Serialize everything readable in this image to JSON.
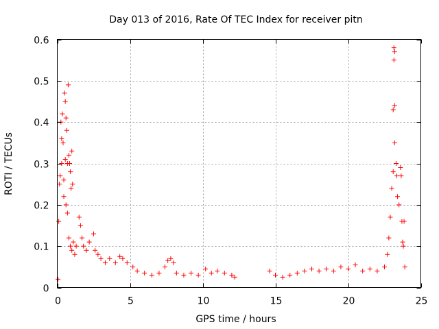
{
  "chart_data": {
    "type": "scatter",
    "title": "Day 013 of 2016, Rate Of TEC Index for receiver pitn",
    "xlabel": "GPS time / hours",
    "ylabel": "ROTI / TECUs",
    "xlim": [
      0,
      25
    ],
    "ylim": [
      0,
      0.6
    ],
    "xticks": [
      0,
      5,
      10,
      15,
      20,
      25
    ],
    "yticks": [
      0,
      0.1,
      0.2,
      0.3,
      0.4,
      0.5,
      0.6
    ],
    "xtick_labels": [
      "0",
      "5",
      "10",
      "15",
      "20",
      "25"
    ],
    "ytick_labels": [
      "0",
      "0.1",
      "0.2",
      "0.3",
      "0.4",
      "0.5",
      "0.6"
    ],
    "grid": true,
    "marker": "+",
    "color": "#ff0000",
    "series": [
      {
        "name": "ROTI",
        "points": [
          [
            0.05,
            0.02
          ],
          [
            0.1,
            0.16
          ],
          [
            0.15,
            0.25
          ],
          [
            0.2,
            0.27
          ],
          [
            0.25,
            0.4
          ],
          [
            0.3,
            0.36
          ],
          [
            0.35,
            0.42
          ],
          [
            0.4,
            0.35
          ],
          [
            0.45,
            0.22
          ],
          [
            0.5,
            0.47
          ],
          [
            0.55,
            0.45
          ],
          [
            0.6,
            0.41
          ],
          [
            0.65,
            0.38
          ],
          [
            0.7,
            0.3
          ],
          [
            0.75,
            0.49
          ],
          [
            0.8,
            0.32
          ],
          [
            0.85,
            0.3
          ],
          [
            0.9,
            0.28
          ],
          [
            0.95,
            0.24
          ],
          [
            1.0,
            0.33
          ],
          [
            1.05,
            0.25
          ],
          [
            0.3,
            0.3
          ],
          [
            0.45,
            0.26
          ],
          [
            0.55,
            0.31
          ],
          [
            0.6,
            0.2
          ],
          [
            0.7,
            0.18
          ],
          [
            0.8,
            0.12
          ],
          [
            0.9,
            0.1
          ],
          [
            1.0,
            0.09
          ],
          [
            1.1,
            0.11
          ],
          [
            1.2,
            0.08
          ],
          [
            1.3,
            0.1
          ],
          [
            1.5,
            0.17
          ],
          [
            1.6,
            0.15
          ],
          [
            1.7,
            0.12
          ],
          [
            1.8,
            0.1
          ],
          [
            2.0,
            0.09
          ],
          [
            2.2,
            0.11
          ],
          [
            2.5,
            0.13
          ],
          [
            2.6,
            0.09
          ],
          [
            2.8,
            0.08
          ],
          [
            3.0,
            0.07
          ],
          [
            3.3,
            0.06
          ],
          [
            3.6,
            0.07
          ],
          [
            4.0,
            0.06
          ],
          [
            4.3,
            0.075
          ],
          [
            4.5,
            0.07
          ],
          [
            4.8,
            0.06
          ],
          [
            5.2,
            0.05
          ],
          [
            5.5,
            0.04
          ],
          [
            6.0,
            0.035
          ],
          [
            6.5,
            0.03
          ],
          [
            7.0,
            0.035
          ],
          [
            7.4,
            0.05
          ],
          [
            7.6,
            0.065
          ],
          [
            7.8,
            0.07
          ],
          [
            8.0,
            0.06
          ],
          [
            8.2,
            0.035
          ],
          [
            8.7,
            0.03
          ],
          [
            9.2,
            0.035
          ],
          [
            9.7,
            0.03
          ],
          [
            10.2,
            0.045
          ],
          [
            10.6,
            0.035
          ],
          [
            11.0,
            0.04
          ],
          [
            11.5,
            0.035
          ],
          [
            12.0,
            0.03
          ],
          [
            12.2,
            0.025
          ],
          [
            14.6,
            0.04
          ],
          [
            15.0,
            0.03
          ],
          [
            15.5,
            0.025
          ],
          [
            16.0,
            0.03
          ],
          [
            16.5,
            0.035
          ],
          [
            17.0,
            0.04
          ],
          [
            17.5,
            0.045
          ],
          [
            18.0,
            0.04
          ],
          [
            18.5,
            0.045
          ],
          [
            19.0,
            0.04
          ],
          [
            19.5,
            0.05
          ],
          [
            20.0,
            0.045
          ],
          [
            20.5,
            0.055
          ],
          [
            21.0,
            0.04
          ],
          [
            21.5,
            0.045
          ],
          [
            22.0,
            0.04
          ],
          [
            22.5,
            0.05
          ],
          [
            22.7,
            0.08
          ],
          [
            22.8,
            0.12
          ],
          [
            22.9,
            0.17
          ],
          [
            23.0,
            0.24
          ],
          [
            23.1,
            0.28
          ],
          [
            23.15,
            0.58
          ],
          [
            23.2,
            0.57
          ],
          [
            23.15,
            0.55
          ],
          [
            23.1,
            0.43
          ],
          [
            23.2,
            0.44
          ],
          [
            23.2,
            0.35
          ],
          [
            23.3,
            0.3
          ],
          [
            23.35,
            0.27
          ],
          [
            23.4,
            0.22
          ],
          [
            23.5,
            0.2
          ],
          [
            23.6,
            0.29
          ],
          [
            23.65,
            0.27
          ],
          [
            23.7,
            0.16
          ],
          [
            23.75,
            0.11
          ],
          [
            23.8,
            0.1
          ],
          [
            23.85,
            0.16
          ],
          [
            23.9,
            0.05
          ]
        ]
      }
    ]
  }
}
